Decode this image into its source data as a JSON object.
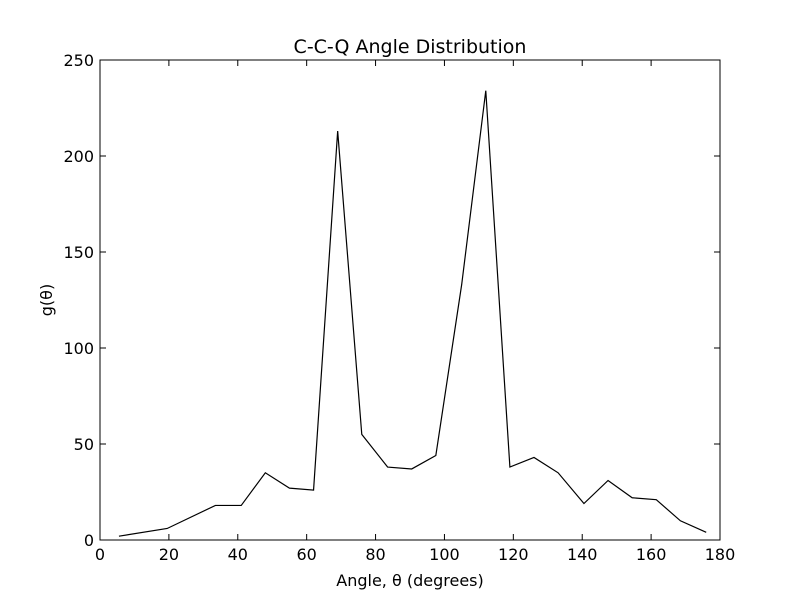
{
  "chart_data": {
    "type": "line",
    "title": "C-C-Q Angle Distribution",
    "xlabel": "Angle, θ (degrees)",
    "ylabel": "g(θ)",
    "xlim": [
      0,
      180
    ],
    "ylim": [
      0,
      250
    ],
    "xticks": [
      0,
      20,
      40,
      60,
      80,
      100,
      120,
      140,
      160,
      180
    ],
    "yticks": [
      0,
      50,
      100,
      150,
      200,
      250
    ],
    "grid": false,
    "series": [
      {
        "color": "#000000",
        "x": [
          5.5,
          19.5,
          33.5,
          41,
          48,
          55,
          62,
          69,
          76,
          83.5,
          90.5,
          97.5,
          105,
          112,
          119,
          126,
          133,
          140.5,
          147.5,
          154.5,
          161.5,
          168.5,
          176
        ],
        "y": [
          2,
          6,
          18,
          18,
          35,
          27,
          26,
          213,
          55,
          38,
          37,
          44,
          133,
          234,
          38,
          43,
          35,
          19,
          31,
          22,
          21,
          10,
          4
        ]
      }
    ]
  }
}
